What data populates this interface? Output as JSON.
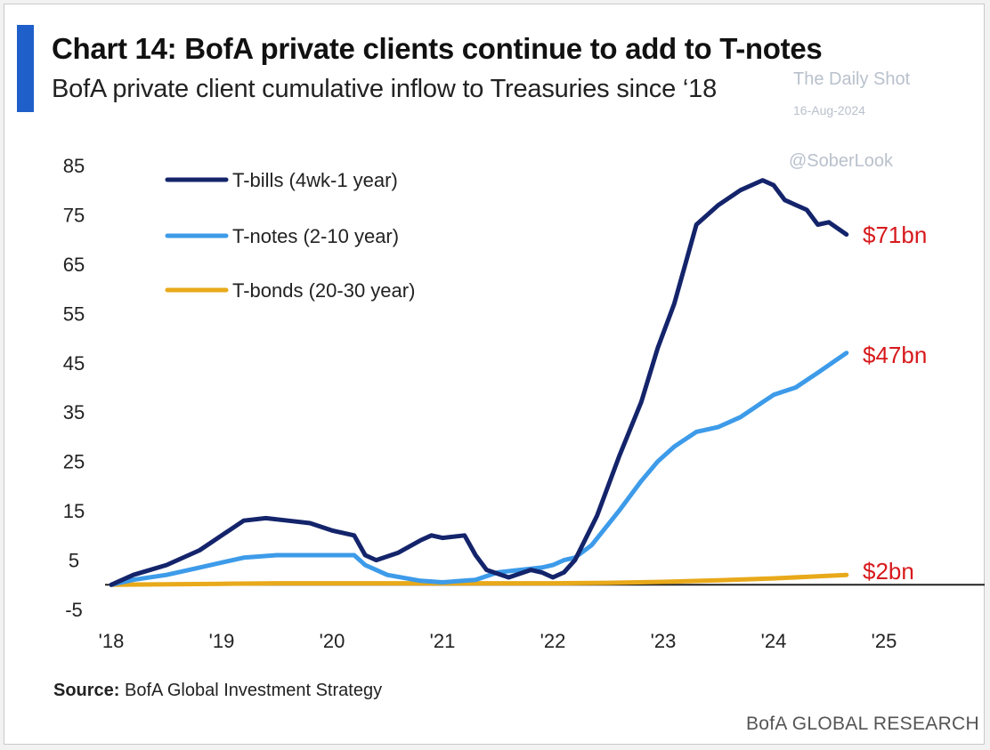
{
  "header": {
    "title": "Chart 14: BofA private clients continue to add to T-notes",
    "subtitle": "BofA private client cumulative inflow to Treasuries since ‘18"
  },
  "watermark": {
    "line1": "The Daily Shot",
    "line2": "16-Aug-2024",
    "line3": "@SoberLook"
  },
  "footer": {
    "source_label": "Source:",
    "source_text": "BofA Global Investment Strategy",
    "brand": "BofA GLOBAL RESEARCH"
  },
  "colors": {
    "accent_bar": "#1f5fc9",
    "t_bills": "#14246b",
    "t_notes": "#3d9be9",
    "t_bonds": "#e8a91a",
    "end_label": "#d7191c",
    "zero_line": "#222222"
  },
  "chart_data": {
    "type": "line",
    "title": "",
    "xlabel": "",
    "ylabel": "",
    "ylim": [
      -5,
      85
    ],
    "xlim": [
      2018,
      2025
    ],
    "yticks": [
      -5,
      5,
      15,
      25,
      35,
      45,
      55,
      65,
      75,
      85
    ],
    "xtick_values": [
      2018,
      2019,
      2020,
      2021,
      2022,
      2023,
      2024,
      2025
    ],
    "xtick_labels": [
      "'18",
      "'19",
      "'20",
      "'21",
      "'22",
      "'23",
      "'24",
      "'25"
    ],
    "grid": false,
    "legend_position": "top-left",
    "series": [
      {
        "name": "T-bills (4wk-1 year)",
        "color_key": "t_bills",
        "end_label": "$71bn",
        "x": [
          2018.0,
          2018.2,
          2018.5,
          2018.8,
          2019.0,
          2019.2,
          2019.4,
          2019.6,
          2019.8,
          2020.0,
          2020.2,
          2020.3,
          2020.4,
          2020.6,
          2020.8,
          2020.9,
          2021.0,
          2021.2,
          2021.3,
          2021.4,
          2021.6,
          2021.8,
          2021.9,
          2022.0,
          2022.1,
          2022.2,
          2022.4,
          2022.6,
          2022.8,
          2022.95,
          2023.1,
          2023.2,
          2023.3,
          2023.5,
          2023.7,
          2023.9,
          2024.0,
          2024.1,
          2024.3,
          2024.4,
          2024.5,
          2024.66
        ],
        "values": [
          0.0,
          2.0,
          4.0,
          7.0,
          10.0,
          13.0,
          13.5,
          13.0,
          12.5,
          11.0,
          10.0,
          6.0,
          5.0,
          6.5,
          9.0,
          10.0,
          9.5,
          10.0,
          6.0,
          3.0,
          1.5,
          3.0,
          2.5,
          1.5,
          2.5,
          5.0,
          14.0,
          26.0,
          37.0,
          48.0,
          57.0,
          65.0,
          73.0,
          77.0,
          80.0,
          82.0,
          81.0,
          78.0,
          76.0,
          73.0,
          73.5,
          71.0
        ]
      },
      {
        "name": "T-notes (2-10 year)",
        "color_key": "t_notes",
        "end_label": "$47bn",
        "x": [
          2018.0,
          2018.2,
          2018.5,
          2018.8,
          2019.0,
          2019.2,
          2019.5,
          2019.8,
          2020.0,
          2020.2,
          2020.3,
          2020.5,
          2020.8,
          2021.0,
          2021.3,
          2021.5,
          2021.7,
          2021.9,
          2022.0,
          2022.1,
          2022.2,
          2022.35,
          2022.6,
          2022.8,
          2022.95,
          2023.1,
          2023.2,
          2023.3,
          2023.5,
          2023.7,
          2023.9,
          2024.0,
          2024.2,
          2024.4,
          2024.66
        ],
        "values": [
          0.0,
          1.0,
          2.0,
          3.5,
          4.5,
          5.5,
          6.0,
          6.0,
          6.0,
          6.0,
          4.0,
          2.0,
          0.8,
          0.5,
          1.0,
          2.5,
          3.0,
          3.5,
          4.0,
          5.0,
          5.5,
          8.0,
          15.0,
          21.0,
          25.0,
          28.0,
          29.5,
          31.0,
          32.0,
          34.0,
          37.0,
          38.5,
          40.0,
          43.0,
          47.0
        ]
      },
      {
        "name": "T-bonds (20-30 year)",
        "color_key": "t_bonds",
        "end_label": "$2bn",
        "x": [
          2018.0,
          2018.5,
          2019.0,
          2019.5,
          2020.0,
          2020.5,
          2021.0,
          2021.5,
          2022.0,
          2022.5,
          2023.0,
          2023.5,
          2024.0,
          2024.3,
          2024.66
        ],
        "values": [
          0.0,
          0.1,
          0.2,
          0.3,
          0.3,
          0.3,
          0.3,
          0.3,
          0.3,
          0.4,
          0.6,
          0.9,
          1.3,
          1.6,
          2.0
        ]
      }
    ]
  }
}
